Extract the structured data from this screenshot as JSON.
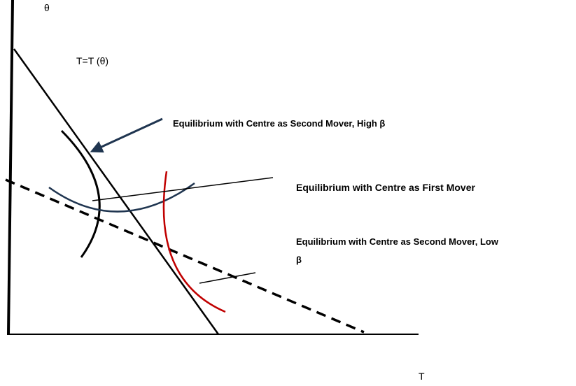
{
  "axes": {
    "y_label": "θ",
    "x_label": "T"
  },
  "curve_label": "T=T (θ)",
  "annotations": {
    "second_mover_high": "Equilibrium with Centre as Second Mover, High β",
    "first_mover": "Equilibrium with Centre as First Mover",
    "second_mover_low": [
      "Equilibrium with Centre as Second Mover, Low",
      "β"
    ]
  }
}
